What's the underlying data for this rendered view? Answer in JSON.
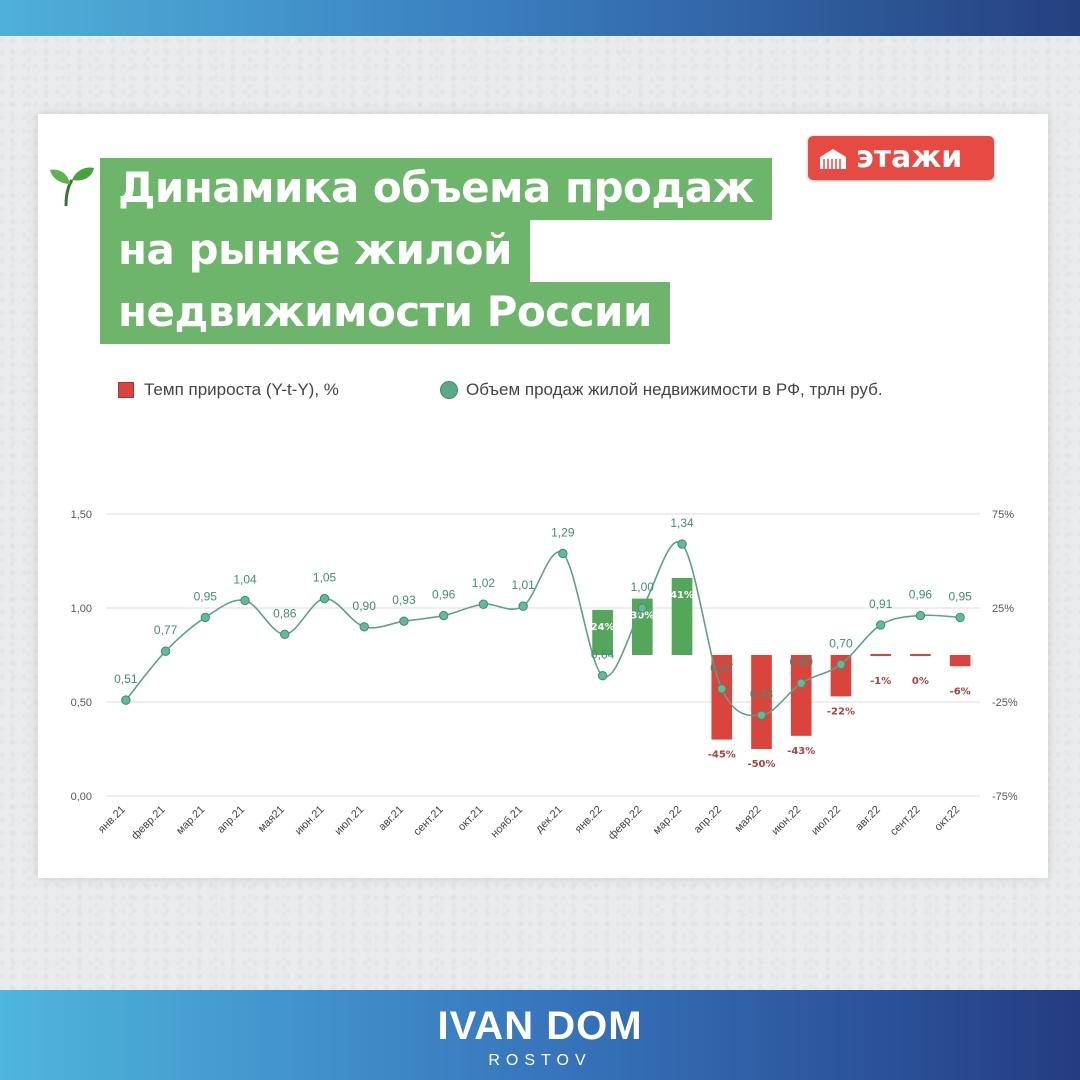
{
  "title_lines": [
    "Динамика объема продаж",
    "на рынке жилой",
    "недвижимости России"
  ],
  "logo_text": "этажи",
  "brand": {
    "main": "IVAN DOM",
    "sub": "ROSTOV"
  },
  "legend": {
    "bars": "Темп прироста (Y-t-Y), %",
    "line": "Объем продаж жилой недвижимости в РФ, трлн руб."
  },
  "colors": {
    "bar_negative": "#d9453d",
    "bar_positive": "#54a65a",
    "line": "#5aa38a",
    "title_bg": "#6cb56a",
    "logo_bg": "#e64a43"
  },
  "chart_data": {
    "type": "bar+line",
    "categories": [
      "янв.21",
      "февр.21",
      "мар.21",
      "апр.21",
      "мая21",
      "июн.21",
      "июл.21",
      "авг.21",
      "сент.21",
      "окт.21",
      "нояб.21",
      "дек.21",
      "янв.22",
      "февр.22",
      "мар.22",
      "апр.22",
      "мая22",
      "июн.22",
      "июл.22",
      "авг.22",
      "сент.22",
      "окт.22"
    ],
    "series": [
      {
        "name": "Объем продаж жилой недвижимости в РФ, трлн руб.",
        "type": "line",
        "axis": "left",
        "values": [
          0.51,
          0.77,
          0.95,
          1.04,
          0.86,
          1.05,
          0.9,
          0.93,
          0.96,
          1.02,
          1.01,
          1.29,
          0.64,
          1.0,
          1.34,
          0.57,
          0.43,
          0.6,
          0.7,
          0.91,
          0.96,
          0.95
        ],
        "labels": [
          "0,51",
          "0,77",
          "0,95",
          "1,04",
          "0,86",
          "1,05",
          "0,90",
          "0,93",
          "0,96",
          "1,02",
          "1,01",
          "1,29",
          "0,64",
          "1,00",
          "1,34",
          "0,57",
          "0,43",
          "0,60",
          "0,70",
          "0,91",
          "0,96",
          "0,95"
        ]
      },
      {
        "name": "Темп прироста (Y-t-Y), %",
        "type": "bar",
        "axis": "right",
        "values": [
          null,
          null,
          null,
          null,
          null,
          null,
          null,
          null,
          null,
          null,
          null,
          null,
          24,
          30,
          41,
          -45,
          -50,
          -43,
          -22,
          -1,
          0,
          -6
        ],
        "labels": [
          "",
          "",
          "",
          "",
          "",
          "",
          "",
          "",
          "",
          "",
          "",
          "",
          "24%",
          "30%",
          "41%",
          "-45%",
          "-50%",
          "-43%",
          "-22%",
          "-1%",
          "0%",
          "-6%"
        ]
      }
    ],
    "y_left": {
      "range": [
        0,
        1.5
      ],
      "ticks": [
        "0,00",
        "0,50",
        "1,00",
        "1,50"
      ],
      "tick_values": [
        0,
        0.5,
        1.0,
        1.5
      ]
    },
    "y_right": {
      "range": [
        -75,
        75
      ],
      "ticks": [
        "-75%",
        "-25%",
        "25%",
        "75%"
      ],
      "tick_values": [
        -75,
        -25,
        25,
        75
      ]
    },
    "grid": true,
    "legend_position": "top-left"
  }
}
